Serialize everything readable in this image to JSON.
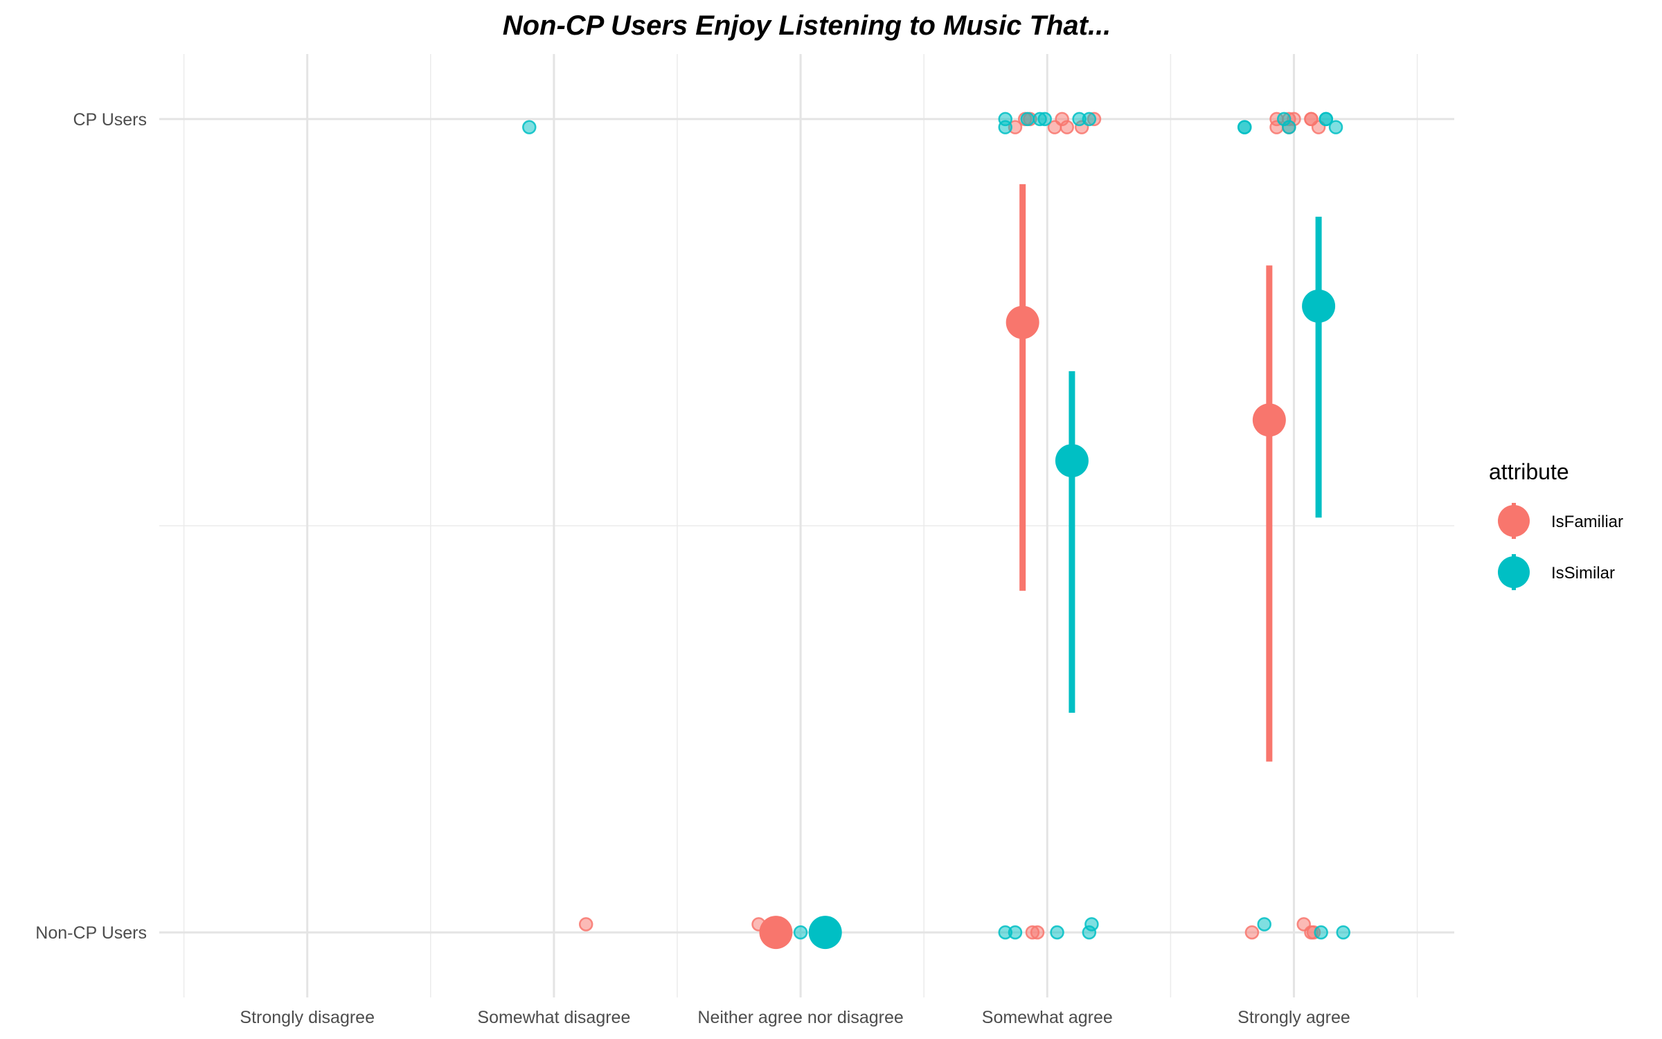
{
  "chart_data": {
    "type": "scatter",
    "title": "Non-CP Users Enjoy Listening to Music That...",
    "xlabel": "",
    "ylabel": "",
    "x_categories": [
      "Strongly disagree",
      "Somewhat disagree",
      "Neither agree nor disagree",
      "Somewhat agree",
      "Strongly agree"
    ],
    "y_categories": [
      "Non-CP Users",
      "CP Users"
    ],
    "xlim": [
      0.4,
      5.65
    ],
    "ylim": [
      0.92,
      2.08
    ],
    "grid": true,
    "legend": {
      "title": "attribute",
      "position": "right",
      "entries": [
        {
          "label": "IsFamiliar",
          "color": "#F8766D"
        },
        {
          "label": "IsSimilar",
          "color": "#00BFC4"
        }
      ]
    },
    "series": [
      {
        "name": "IsFamiliar",
        "color": "#F8766D",
        "summary": [
          {
            "x": 3.9,
            "y": 1.75,
            "ymin": 1.42,
            "ymax": 1.92
          },
          {
            "x": 4.9,
            "y": 1.63,
            "ymin": 1.21,
            "ymax": 1.82
          },
          {
            "x": 2.9,
            "y": 1.0
          }
        ],
        "points": [
          {
            "x": 2.13,
            "y": 1.01
          },
          {
            "x": 2.83,
            "y": 1.01
          },
          {
            "x": 3.93,
            "y": 2.0
          },
          {
            "x": 3.87,
            "y": 1.99
          },
          {
            "x": 3.91,
            "y": 2.0
          },
          {
            "x": 4.03,
            "y": 1.99
          },
          {
            "x": 4.06,
            "y": 2.0
          },
          {
            "x": 4.08,
            "y": 1.99
          },
          {
            "x": 4.14,
            "y": 1.99
          },
          {
            "x": 4.19,
            "y": 2.0
          },
          {
            "x": 3.94,
            "y": 1.0
          },
          {
            "x": 3.96,
            "y": 1.0
          },
          {
            "x": 4.93,
            "y": 2.0
          },
          {
            "x": 4.98,
            "y": 2.0
          },
          {
            "x": 5.07,
            "y": 2.0
          },
          {
            "x": 4.93,
            "y": 1.99
          },
          {
            "x": 5.0,
            "y": 2.0
          },
          {
            "x": 5.1,
            "y": 1.99
          },
          {
            "x": 4.98,
            "y": 1.99
          },
          {
            "x": 5.07,
            "y": 2.0
          },
          {
            "x": 4.83,
            "y": 1.0
          },
          {
            "x": 5.04,
            "y": 1.01
          },
          {
            "x": 5.07,
            "y": 1.0
          },
          {
            "x": 5.08,
            "y": 1.0
          }
        ]
      },
      {
        "name": "IsSimilar",
        "color": "#00BFC4",
        "summary": [
          {
            "x": 4.1,
            "y": 1.58,
            "ymin": 1.27,
            "ymax": 1.69
          },
          {
            "x": 5.1,
            "y": 1.77,
            "ymin": 1.51,
            "ymax": 1.88
          },
          {
            "x": 3.1,
            "y": 1.0
          }
        ],
        "points": [
          {
            "x": 1.9,
            "y": 1.99
          },
          {
            "x": 3.0,
            "y": 1.0
          },
          {
            "x": 3.83,
            "y": 2.0
          },
          {
            "x": 3.83,
            "y": 1.99
          },
          {
            "x": 3.92,
            "y": 2.0
          },
          {
            "x": 3.97,
            "y": 2.0
          },
          {
            "x": 3.99,
            "y": 2.0
          },
          {
            "x": 4.13,
            "y": 2.0
          },
          {
            "x": 4.17,
            "y": 2.0
          },
          {
            "x": 3.83,
            "y": 1.0
          },
          {
            "x": 3.87,
            "y": 1.0
          },
          {
            "x": 4.04,
            "y": 1.0
          },
          {
            "x": 4.18,
            "y": 1.01
          },
          {
            "x": 4.17,
            "y": 1.0
          },
          {
            "x": 4.8,
            "y": 1.99
          },
          {
            "x": 4.8,
            "y": 1.99
          },
          {
            "x": 4.96,
            "y": 2.0
          },
          {
            "x": 4.98,
            "y": 1.99
          },
          {
            "x": 5.13,
            "y": 2.0
          },
          {
            "x": 5.17,
            "y": 1.99
          },
          {
            "x": 5.13,
            "y": 2.0
          },
          {
            "x": 4.88,
            "y": 1.01
          },
          {
            "x": 5.11,
            "y": 1.0
          },
          {
            "x": 5.2,
            "y": 1.0
          }
        ]
      }
    ]
  }
}
